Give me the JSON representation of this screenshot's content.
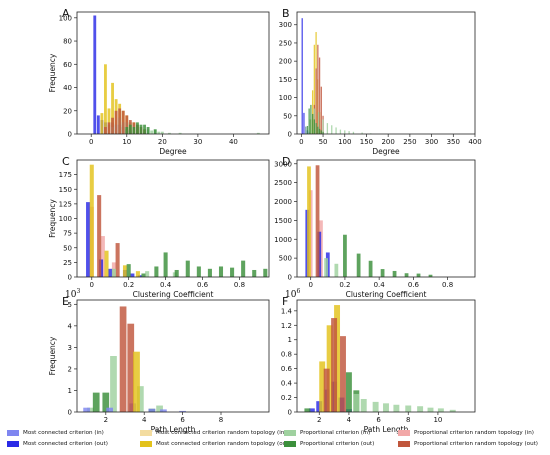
{
  "colors": {
    "mc_in": "#7f86f0",
    "mc_out": "#2a2ae6",
    "mcr_in": "#f3dca0",
    "mcr_out": "#e3c21a",
    "prop_in": "#9fd19f",
    "prop_out": "#3b8f3b",
    "propr_in": "#f2a8a8",
    "propr_out": "#c0563c"
  },
  "legend": [
    {
      "label": "Most connected criterion (in)",
      "color_key": "mc_in"
    },
    {
      "label": "Most connected criterion random topology (in)",
      "color_key": "mcr_in"
    },
    {
      "label": "Proportional criterion (in)",
      "color_key": "prop_in"
    },
    {
      "label": "Proportional criterion random topology (in)",
      "color_key": "propr_in"
    },
    {
      "label": "Most connected criterion (out)",
      "color_key": "mc_out"
    },
    {
      "label": "Most connected criterion random topology (out)",
      "color_key": "mcr_out"
    },
    {
      "label": "Proportional criterion (out)",
      "color_key": "prop_out"
    },
    {
      "label": "Proportional criterion random topology (out)",
      "color_key": "propr_out"
    }
  ],
  "chart_data": [
    {
      "panel": "A",
      "type": "bar",
      "xlabel": "Degree",
      "ylabel": "Frequency",
      "xlim": [
        -4,
        50
      ],
      "ylim": [
        0,
        105
      ],
      "xticks": [
        0,
        10,
        20,
        30,
        40
      ],
      "yticks": [
        0,
        20,
        40,
        60,
        80,
        100
      ],
      "bar_width": 0.8,
      "series": [
        {
          "key": "mc_out",
          "x": [
            1,
            2,
            3,
            4,
            5,
            6,
            7,
            8,
            9,
            10,
            11,
            12
          ],
          "values": [
            102,
            16,
            12,
            10,
            8,
            10,
            8,
            8,
            6,
            4,
            3,
            2
          ]
        },
        {
          "key": "mcr_out",
          "x": [
            3,
            4,
            5,
            6,
            7,
            8,
            9,
            10,
            11,
            12,
            13,
            14
          ],
          "values": [
            18,
            60,
            22,
            44,
            30,
            26,
            20,
            16,
            10,
            10,
            6,
            4
          ]
        },
        {
          "key": "prop_in",
          "x": [
            6,
            7,
            8,
            9,
            10,
            11,
            12,
            13,
            14,
            15,
            16,
            17,
            18,
            19,
            20,
            22,
            25,
            47
          ],
          "values": [
            6,
            8,
            14,
            10,
            10,
            10,
            8,
            8,
            6,
            4,
            4,
            3,
            4,
            2,
            2,
            1,
            1,
            1
          ]
        },
        {
          "key": "propr_out",
          "x": [
            4,
            5,
            6,
            7,
            8,
            9,
            10,
            11,
            12,
            13,
            14,
            15
          ],
          "values": [
            6,
            10,
            14,
            20,
            22,
            20,
            16,
            12,
            10,
            8,
            6,
            4
          ]
        },
        {
          "key": "prop_out",
          "x": [
            10,
            11,
            12,
            13,
            14,
            15,
            16,
            18
          ],
          "values": [
            6,
            8,
            6,
            10,
            8,
            8,
            6,
            4
          ]
        }
      ]
    },
    {
      "panel": "B",
      "type": "bar",
      "xlabel": "Degree",
      "ylabel": "",
      "xlim": [
        -10,
        400
      ],
      "ylim": [
        0,
        335
      ],
      "xticks": [
        0,
        50,
        100,
        150,
        200,
        250,
        300,
        350,
        400
      ],
      "yticks": [
        0,
        50,
        100,
        150,
        200,
        250,
        300
      ],
      "bar_width": 3,
      "series": [
        {
          "key": "mc_out",
          "x": [
            2,
            6,
            10,
            14,
            18
          ],
          "values": [
            318,
            58,
            20,
            10,
            6
          ]
        },
        {
          "key": "mcr_out",
          "x": [
            22,
            26,
            30,
            34,
            38,
            42
          ],
          "values": [
            40,
            120,
            245,
            280,
            150,
            60
          ]
        },
        {
          "key": "propr_out",
          "x": [
            30,
            34,
            38,
            42,
            46,
            50
          ],
          "values": [
            80,
            180,
            245,
            210,
            130,
            50
          ]
        },
        {
          "key": "prop_in",
          "x": [
            10,
            20,
            30,
            40,
            50,
            60,
            70,
            80,
            90,
            100,
            110,
            120,
            140,
            160
          ],
          "values": [
            20,
            40,
            70,
            60,
            40,
            30,
            24,
            18,
            12,
            10,
            8,
            6,
            4,
            2
          ]
        },
        {
          "key": "prop_out",
          "x": [
            14,
            18,
            22,
            26,
            30,
            34,
            38,
            42,
            46,
            50
          ],
          "values": [
            22,
            70,
            80,
            55,
            40,
            30,
            20,
            14,
            10,
            6
          ]
        }
      ]
    },
    {
      "panel": "C",
      "type": "bar",
      "xlabel": "Clustering Coefficient",
      "ylabel": "Frequency",
      "xlim": [
        -0.08,
        0.96
      ],
      "ylim": [
        0,
        200
      ],
      "xticks": [
        0.0,
        0.2,
        0.4,
        0.6,
        0.8
      ],
      "yticks": [
        0,
        25,
        50,
        75,
        100,
        125,
        150,
        175
      ],
      "bar_width": 0.022,
      "series": [
        {
          "key": "propr_in",
          "x": [
            0.0,
            0.06,
            0.12
          ],
          "values": [
            120,
            70,
            25
          ]
        },
        {
          "key": "mc_out",
          "x": [
            -0.02,
            0.05,
            0.1,
            0.18,
            0.22,
            0.26
          ],
          "values": [
            128,
            30,
            14,
            12,
            6,
            3
          ]
        },
        {
          "key": "mcr_out",
          "x": [
            0.0,
            0.08,
            0.18,
            0.25
          ],
          "values": [
            192,
            45,
            20,
            10
          ]
        },
        {
          "key": "propr_out",
          "x": [
            0.04,
            0.14
          ],
          "values": [
            140,
            58
          ]
        },
        {
          "key": "prop_in",
          "x": [
            0.12,
            0.3,
            0.45
          ],
          "values": [
            14,
            10,
            8
          ]
        },
        {
          "key": "prop_out",
          "x": [
            0.2,
            0.28,
            0.35,
            0.4,
            0.46,
            0.52,
            0.58,
            0.64,
            0.7,
            0.76,
            0.82,
            0.88,
            0.94
          ],
          "values": [
            22,
            6,
            18,
            42,
            12,
            28,
            18,
            14,
            18,
            16,
            28,
            12,
            14
          ]
        }
      ]
    },
    {
      "panel": "D",
      "type": "bar",
      "xlabel": "Clustering Coefficient",
      "ylabel": "",
      "xlim": [
        -0.08,
        0.96
      ],
      "ylim": [
        0,
        3100
      ],
      "xticks": [
        0.0,
        0.2,
        0.4,
        0.6,
        0.8
      ],
      "yticks": [
        0,
        500,
        1000,
        1500,
        2000,
        2500,
        3000
      ],
      "bar_width": 0.022,
      "series": [
        {
          "key": "propr_in",
          "x": [
            0.0,
            0.06
          ],
          "values": [
            2300,
            1500
          ]
        },
        {
          "key": "mc_out",
          "x": [
            -0.02,
            0.05,
            0.1
          ],
          "values": [
            1780,
            1200,
            650
          ]
        },
        {
          "key": "mcr_out",
          "x": [
            -0.01
          ],
          "values": [
            2930
          ]
        },
        {
          "key": "propr_out",
          "x": [
            0.04
          ],
          "values": [
            2960
          ]
        },
        {
          "key": "prop_in",
          "x": [
            0.09,
            0.15
          ],
          "values": [
            500,
            350
          ]
        },
        {
          "key": "prop_out",
          "x": [
            0.2,
            0.28,
            0.35,
            0.42,
            0.49,
            0.56,
            0.63,
            0.7
          ],
          "values": [
            1120,
            620,
            430,
            210,
            160,
            100,
            90,
            60
          ]
        }
      ]
    },
    {
      "panel": "E",
      "type": "bar",
      "xlabel": "Path Length",
      "ylabel": "Frequency",
      "multiplier": "10",
      "multiplier_exp": "3",
      "xlim": [
        0.5,
        10.5
      ],
      "ylim": [
        0,
        5.2
      ],
      "xticks": [
        2,
        4,
        6,
        8
      ],
      "yticks": [
        0,
        1,
        2,
        3,
        4,
        5
      ],
      "bar_width": 0.35,
      "series": [
        {
          "key": "prop_in",
          "x": [
            1.2,
            2.4,
            3.8,
            4.8
          ],
          "values": [
            0.2,
            2.6,
            1.2,
            0.3
          ]
        },
        {
          "key": "prop_out",
          "x": [
            1.5,
            2.0,
            4.4
          ],
          "values": [
            0.9,
            0.9,
            0.15
          ]
        },
        {
          "key": "mc_in",
          "x": [
            1.0,
            2.2,
            3.4,
            4.4,
            5.0,
            6.0
          ],
          "values": [
            0.2,
            0.2,
            0.4,
            0.15,
            0.12,
            0.05
          ]
        },
        {
          "key": "propr_out",
          "x": [
            2.9,
            3.3
          ],
          "values": [
            4.9,
            4.1
          ]
        },
        {
          "key": "mcr_out",
          "x": [
            3.6
          ],
          "values": [
            2.8
          ]
        }
      ]
    },
    {
      "panel": "F",
      "type": "bar",
      "xlabel": "Path Length",
      "ylabel": "",
      "multiplier": "10",
      "multiplier_exp": "6",
      "xlim": [
        0.5,
        12.5
      ],
      "ylim": [
        0,
        1.55
      ],
      "xticks": [
        2,
        4,
        6,
        8,
        10
      ],
      "yticks": [
        0.0,
        0.2,
        0.4,
        0.6,
        0.8,
        1.0,
        1.2,
        1.4
      ],
      "bar_width": 0.4,
      "series": [
        {
          "key": "mc_out",
          "x": [
            1.5,
            2.0,
            2.5,
            3.0,
            3.5,
            4.0
          ],
          "values": [
            0.05,
            0.15,
            0.31,
            0.42,
            0.2,
            0.04
          ]
        },
        {
          "key": "mcr_out",
          "x": [
            2.2,
            2.7,
            3.2
          ],
          "values": [
            0.7,
            1.2,
            1.48
          ]
        },
        {
          "key": "propr_out",
          "x": [
            2.5,
            3.0,
            3.6
          ],
          "values": [
            0.6,
            1.3,
            1.05
          ]
        },
        {
          "key": "prop_out",
          "x": [
            1.2,
            4.0,
            4.5
          ],
          "values": [
            0.05,
            0.55,
            0.3
          ]
        },
        {
          "key": "prop_in",
          "x": [
            4.5,
            5.0,
            5.8,
            6.5,
            7.2,
            8.0,
            8.8,
            9.5,
            10.2,
            11.0
          ],
          "values": [
            0.25,
            0.18,
            0.14,
            0.12,
            0.1,
            0.09,
            0.08,
            0.06,
            0.05,
            0.03
          ]
        }
      ]
    }
  ]
}
